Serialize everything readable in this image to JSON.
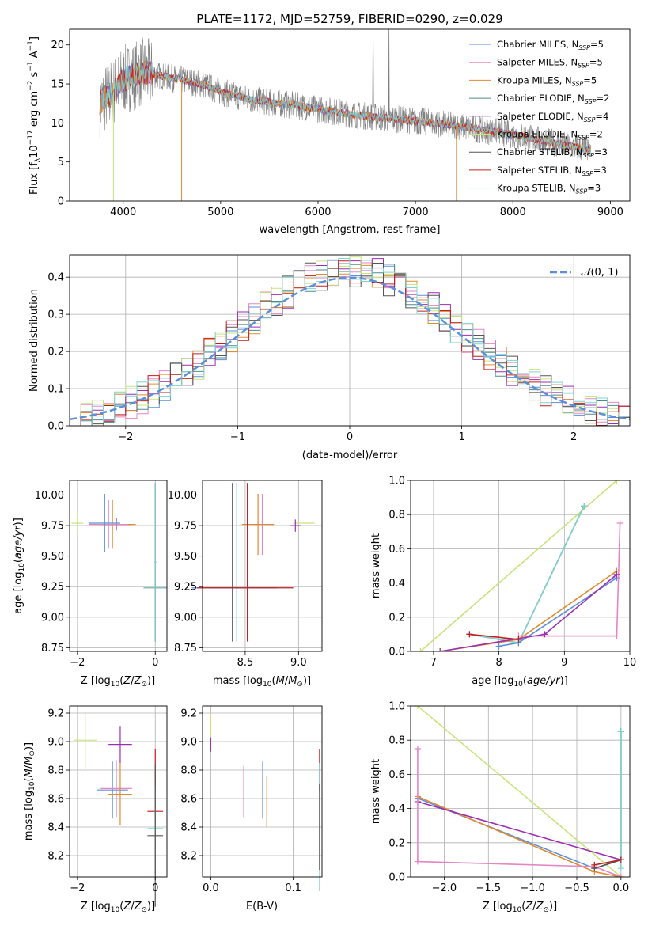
{
  "colors": {
    "chabrier_miles": "#5b8fd9",
    "salpeter_miles": "#e585c4",
    "kroupa_miles": "#e08a2e",
    "chabrier_elodie": "#4f8a8b",
    "salpeter_elodie": "#9a2fb0",
    "kroupa_elodie": "#c7e37a",
    "chabrier_stelib": "#555555",
    "salpeter_stelib": "#c21d1d",
    "kroupa_stelib": "#7fd4cf",
    "observed": "#808080",
    "normal": "#5b8fd9"
  },
  "chart_data": [
    {
      "id": "spectrum",
      "type": "line",
      "title": "PLATE=1172, MJD=52759, FIBERID=0290, z=0.029",
      "xlabel": "wavelength [Angstrom, rest frame]",
      "ylabel": "Flux [f_λ 10^-17 erg cm^-2 s^-1 A^-1]",
      "xlim": [
        3450,
        9200
      ],
      "ylim": [
        0,
        22
      ],
      "xticks": [
        4000,
        5000,
        6000,
        7000,
        8000,
        9000
      ],
      "yticks": [
        0,
        5,
        10,
        15,
        20
      ],
      "grid": false,
      "legend_position": "top-right",
      "legend": [
        {
          "name": "Chabrier MILES",
          "n_ssp": 5,
          "color_key": "chabrier_miles"
        },
        {
          "name": "Salpeter MILES",
          "n_ssp": 5,
          "color_key": "salpeter_miles"
        },
        {
          "name": "Kroupa MILES",
          "n_ssp": 5,
          "color_key": "kroupa_miles"
        },
        {
          "name": "Chabrier ELODIE",
          "n_ssp": 2,
          "color_key": "chabrier_elodie"
        },
        {
          "name": "Salpeter ELODIE",
          "n_ssp": 4,
          "color_key": "salpeter_elodie"
        },
        {
          "name": "Kroupa ELODIE",
          "n_ssp": 2,
          "color_key": "kroupa_elodie"
        },
        {
          "name": "Chabrier STELIB",
          "n_ssp": 3,
          "color_key": "chabrier_stelib"
        },
        {
          "name": "Salpeter STELIB",
          "n_ssp": 3,
          "color_key": "salpeter_stelib"
        },
        {
          "name": "Kroupa STELIB",
          "n_ssp": 3,
          "color_key": "kroupa_stelib"
        }
      ],
      "continuum_approx": {
        "wavelength": [
          3750,
          3900,
          4000,
          4200,
          4400,
          4600,
          4800,
          5000,
          5300,
          5600,
          6000,
          6400,
          6800,
          7200,
          7600,
          8000,
          8400,
          8800
        ],
        "flux": [
          12.5,
          14,
          15.5,
          16.5,
          16,
          15.5,
          15,
          14,
          13,
          12.5,
          11.8,
          11,
          10.5,
          10,
          9.3,
          8.5,
          7.5,
          6.5
        ]
      }
    },
    {
      "id": "residuals",
      "type": "line",
      "xlabel": "(data-model)/error",
      "ylabel": "Normed distribution",
      "xlim": [
        -2.5,
        2.5
      ],
      "ylim": [
        0,
        0.46
      ],
      "xticks": [
        -2,
        -1,
        0,
        1,
        2
      ],
      "yticks": [
        0.0,
        0.1,
        0.2,
        0.3,
        0.4
      ],
      "grid": true,
      "legend_position": "top-right",
      "normal_curve": {
        "label": "N(0,1)",
        "mu": 0,
        "sigma": 1
      },
      "bins": [
        -2.5,
        -2.4,
        -2.3,
        -2.2,
        -2.1,
        -2.0,
        -1.9,
        -1.8,
        -1.7,
        -1.6,
        -1.5,
        -1.4,
        -1.3,
        -1.2,
        -1.1,
        -1.0,
        -0.9,
        -0.8,
        -0.7,
        -0.6,
        -0.5,
        -0.4,
        -0.3,
        -0.2,
        -0.1,
        0.0,
        0.1,
        0.2,
        0.3,
        0.4,
        0.5,
        0.6,
        0.7,
        0.8,
        0.9,
        1.0,
        1.1,
        1.2,
        1.3,
        1.4,
        1.5,
        1.6,
        1.7,
        1.8,
        1.9,
        2.0,
        2.1,
        2.2,
        2.3,
        2.4
      ]
    },
    {
      "id": "age_vs_Z",
      "type": "scatter",
      "xlabel": "Z [log10(Z/Z⊙)]",
      "ylabel": "age  [log10(age/yr)]",
      "xlim": [
        -2.2,
        0.3
      ],
      "ylim": [
        8.72,
        10.12
      ],
      "xticks": [
        -2,
        0
      ],
      "yticks": [
        8.75,
        9.0,
        9.25,
        9.5,
        9.75,
        10.0
      ],
      "grid": true,
      "points": [
        {
          "c": "kroupa_elodie",
          "x": -2.0,
          "y": 9.77,
          "xerr": 0.15,
          "yerr": 0.08
        },
        {
          "c": "salpeter_elodie",
          "x": -1.0,
          "y": 9.76,
          "xerr": 0.4,
          "yerr": 0.05
        },
        {
          "c": "kroupa_miles",
          "x": -1.1,
          "y": 9.76,
          "xerr": 0.6,
          "yerr": 0.2
        },
        {
          "c": "salpeter_miles",
          "x": -1.2,
          "y": 9.76,
          "xerr": 0.5,
          "yerr": 0.2
        },
        {
          "c": "chabrier_miles",
          "x": -1.3,
          "y": 9.77,
          "xerr": 0.4,
          "yerr": 0.24
        },
        {
          "c": "salpeter_stelib",
          "x": 0.0,
          "y": 9.24,
          "xerr": 0.3,
          "yerr": 0.0
        },
        {
          "c": "kroupa_stelib",
          "x": 0.0,
          "y": 9.24,
          "xerr": 0.3,
          "yerr": 0.0
        },
        {
          "c": "chabrier_stelib",
          "x": 0.0,
          "y": 9.45,
          "xerr": 0.02,
          "yerr": 0.65
        },
        {
          "c": "kroupa_stelib",
          "x": 0.0,
          "y": 9.45,
          "xerr": 0.02,
          "yerr": 0.65
        }
      ]
    },
    {
      "id": "age_vs_mass",
      "type": "scatter",
      "xlabel": "mass [log10(M/M⊙)]",
      "xlim": [
        8.1,
        9.22
      ],
      "ylim": [
        8.72,
        10.12
      ],
      "xticks": [
        8.5,
        9.0
      ],
      "yticks": [
        8.75,
        9.0,
        9.25,
        9.5,
        9.75,
        10.0
      ],
      "grid": true,
      "points": [
        {
          "c": "kroupa_elodie",
          "x": 9.05,
          "y": 9.77,
          "xerr": 0.1,
          "yerr": 0.0
        },
        {
          "c": "salpeter_elodie",
          "x": 8.97,
          "y": 9.75,
          "xerr": 0.05,
          "yerr": 0.05
        },
        {
          "c": "salpeter_miles",
          "x": 8.66,
          "y": 9.76,
          "xerr": 0.1,
          "yerr": 0.25
        },
        {
          "c": "kroupa_miles",
          "x": 8.62,
          "y": 9.76,
          "xerr": 0.15,
          "yerr": 0.25
        },
        {
          "c": "chabrier_stelib",
          "x": 8.38,
          "y": 9.45,
          "xerr": 0.0,
          "yerr": 0.65
        },
        {
          "c": "kroupa_stelib",
          "x": 8.42,
          "y": 9.45,
          "xerr": 0.0,
          "yerr": 0.65
        },
        {
          "c": "salpeter_stelib",
          "x": 8.52,
          "y": 9.45,
          "xerr": 0.0,
          "yerr": 0.65
        },
        {
          "c": "chabrier_miles",
          "x": 8.4,
          "y": 9.24,
          "xerr": 0.4,
          "yerr": 0.0
        },
        {
          "c": "salpeter_stelib",
          "x": 8.5,
          "y": 9.24,
          "xerr": 0.45,
          "yerr": 0.0
        }
      ]
    },
    {
      "id": "weight_vs_age",
      "type": "line",
      "xlabel": "age  [log10(age/yr)]",
      "ylabel": "mass weight",
      "xlim": [
        6.65,
        10.0
      ],
      "ylim": [
        0,
        1
      ],
      "xticks": [
        7,
        8,
        9,
        10
      ],
      "yticks": [
        0.0,
        0.2,
        0.4,
        0.6,
        0.8,
        1.0
      ],
      "grid": true,
      "series": [
        {
          "c": "kroupa_elodie",
          "x": [
            6.8,
            9.8
          ],
          "y": [
            0.0,
            1.0
          ]
        },
        {
          "c": "chabrier_stelib",
          "x": [
            7.55,
            8.3,
            9.3
          ],
          "y": [
            0.1,
            0.05,
            0.85
          ]
        },
        {
          "c": "kroupa_stelib",
          "x": [
            7.55,
            8.3,
            9.3
          ],
          "y": [
            0.1,
            0.05,
            0.85
          ]
        },
        {
          "c": "chabrier_miles",
          "x": [
            8.0,
            8.3,
            9.8
          ],
          "y": [
            0.03,
            0.05,
            0.43
          ]
        },
        {
          "c": "salpeter_miles",
          "x": [
            8.3,
            9.8,
            9.85
          ],
          "y": [
            0.09,
            0.09,
            0.75
          ]
        },
        {
          "c": "kroupa_miles",
          "x": [
            7.1,
            8.3,
            9.8
          ],
          "y": [
            0.0,
            0.07,
            0.47
          ]
        },
        {
          "c": "salpeter_elodie",
          "x": [
            7.1,
            8.7,
            9.8
          ],
          "y": [
            0.0,
            0.1,
            0.45
          ]
        },
        {
          "c": "salpeter_stelib",
          "x": [
            7.55,
            8.3
          ],
          "y": [
            0.1,
            0.07
          ]
        }
      ]
    },
    {
      "id": "mass_vs_Z",
      "type": "scatter",
      "xlabel": "Z [log10(Z/Z⊙)]",
      "ylabel": "mass [log10(M/M⊙)]",
      "xlim": [
        -2.2,
        0.3
      ],
      "ylim": [
        8.05,
        9.25
      ],
      "xticks": [
        -2,
        0
      ],
      "yticks": [
        8.2,
        8.4,
        8.6,
        8.8,
        9.0,
        9.2
      ],
      "grid": true,
      "points": [
        {
          "c": "kroupa_elodie",
          "x": -1.8,
          "y": 9.01,
          "xerr": 0.3,
          "yerr": 0.2
        },
        {
          "c": "salpeter_elodie",
          "x": -0.9,
          "y": 8.98,
          "xerr": 0.3,
          "yerr": 0.13
        },
        {
          "c": "chabrier_miles",
          "x": -1.1,
          "y": 8.66,
          "xerr": 0.4,
          "yerr": 0.2
        },
        {
          "c": "salpeter_miles",
          "x": -1.0,
          "y": 8.67,
          "xerr": 0.4,
          "yerr": 0.2
        },
        {
          "c": "kroupa_miles",
          "x": -0.9,
          "y": 8.63,
          "xerr": 0.3,
          "yerr": 0.22
        },
        {
          "c": "salpeter_stelib",
          "x": 0.0,
          "y": 8.51,
          "xerr": 0.2,
          "yerr": 0.44
        },
        {
          "c": "kroupa_stelib",
          "x": 0.0,
          "y": 8.39,
          "xerr": 0.2,
          "yerr": 0.3
        },
        {
          "c": "chabrier_stelib",
          "x": 0.0,
          "y": 8.34,
          "xerr": 0.2,
          "yerr": 0.5
        }
      ]
    },
    {
      "id": "mass_vs_EBV",
      "type": "scatter",
      "xlabel": "E(B-V)",
      "xlim": [
        -0.01,
        0.135
      ],
      "ylim": [
        8.05,
        9.25
      ],
      "xticks": [
        0.0,
        0.1
      ],
      "yticks": [
        8.2,
        8.4,
        8.6,
        8.8,
        9.0,
        9.2
      ],
      "grid": true,
      "points": [
        {
          "c": "kroupa_elodie",
          "x": 0.0,
          "y": 9.1,
          "xerr": 0.0,
          "yerr": 0.1
        },
        {
          "c": "salpeter_elodie",
          "x": 0.0,
          "y": 8.98,
          "xerr": 0.0,
          "yerr": 0.05
        },
        {
          "c": "salpeter_miles",
          "x": 0.04,
          "y": 8.65,
          "xerr": 0.0,
          "yerr": 0.18
        },
        {
          "c": "chabrier_miles",
          "x": 0.063,
          "y": 8.66,
          "xerr": 0.0,
          "yerr": 0.2
        },
        {
          "c": "kroupa_miles",
          "x": 0.068,
          "y": 8.58,
          "xerr": 0.0,
          "yerr": 0.18
        },
        {
          "c": "salpeter_stelib",
          "x": 0.132,
          "y": 8.8,
          "xerr": 0.0,
          "yerr": 0.15
        },
        {
          "c": "kroupa_stelib",
          "x": 0.132,
          "y": 8.4,
          "xerr": 0.0,
          "yerr": 0.45
        },
        {
          "c": "chabrier_stelib",
          "x": 0.132,
          "y": 8.4,
          "xerr": 0.0,
          "yerr": 0.3
        }
      ]
    },
    {
      "id": "weight_vs_Z",
      "type": "line",
      "xlabel": "Z [log10(Z/Z⊙)]",
      "ylabel": "mass weight",
      "xlim": [
        -2.38,
        0.1
      ],
      "ylim": [
        0,
        1
      ],
      "xticks": [
        -2.0,
        -1.5,
        -1.0,
        -0.5,
        0.0
      ],
      "yticks": [
        0.0,
        0.2,
        0.4,
        0.6,
        0.8,
        1.0
      ],
      "grid": true,
      "series": [
        {
          "c": "kroupa_elodie",
          "x": [
            -2.3,
            0.0
          ],
          "y": [
            1.0,
            0.0
          ]
        },
        {
          "c": "chabrier_miles",
          "x": [
            -2.3,
            -0.3,
            0.0,
            0.0
          ],
          "y": [
            0.46,
            0.05,
            0.1,
            0.85
          ]
        },
        {
          "c": "kroupa_miles",
          "x": [
            -2.3,
            -0.3,
            0.0
          ],
          "y": [
            0.47,
            0.03,
            0.0
          ]
        },
        {
          "c": "salpeter_elodie",
          "x": [
            -2.3,
            0.0
          ],
          "y": [
            0.44,
            0.1
          ]
        },
        {
          "c": "salpeter_miles",
          "x": [
            -2.3,
            -2.3,
            -0.3,
            0.0
          ],
          "y": [
            0.75,
            0.09,
            0.06,
            0.0
          ]
        },
        {
          "c": "chabrier_stelib",
          "x": [
            -0.3,
            0.0,
            0.0
          ],
          "y": [
            0.05,
            0.1,
            0.85
          ]
        },
        {
          "c": "kroupa_stelib",
          "x": [
            0.0,
            0.0
          ],
          "y": [
            0.05,
            0.85
          ]
        },
        {
          "c": "salpeter_stelib",
          "x": [
            -0.3,
            0.0
          ],
          "y": [
            0.07,
            0.1
          ]
        }
      ]
    }
  ]
}
